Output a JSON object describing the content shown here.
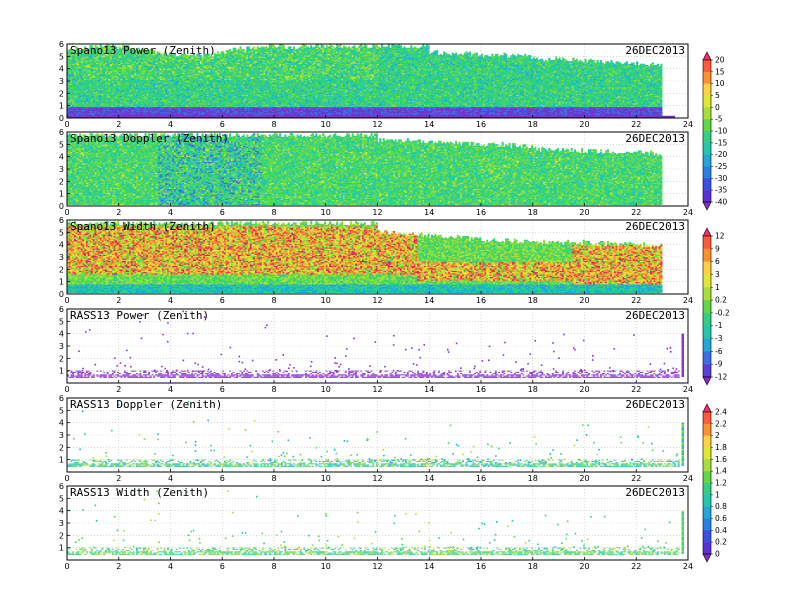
{
  "chart_data": [
    {
      "type": "heatmap",
      "title": "Spano13 Power (Zenith)",
      "date": "26DEC2013",
      "xlim": [
        0,
        24
      ],
      "ylim": [
        0,
        6
      ],
      "x_ticks": [
        0,
        2,
        4,
        6,
        8,
        10,
        12,
        14,
        16,
        18,
        20,
        22,
        24
      ],
      "y_ticks": [
        0,
        1,
        2,
        3,
        4,
        5,
        6
      ],
      "colorbar": "cb1",
      "profile": "power_sp"
    },
    {
      "type": "heatmap",
      "title": "Spano13 Doppler (Zenith)",
      "date": "26DEC2013",
      "xlim": [
        0,
        24
      ],
      "ylim": [
        0,
        6
      ],
      "x_ticks": [
        0,
        2,
        4,
        6,
        8,
        10,
        12,
        14,
        16,
        18,
        20,
        22,
        24
      ],
      "y_ticks": [
        0,
        1,
        2,
        3,
        4,
        5,
        6
      ],
      "colorbar": "cb1",
      "profile": "doppler_sp"
    },
    {
      "type": "heatmap",
      "title": "Spano13 Width (Zenith)",
      "date": "26DEC2013",
      "xlim": [
        0,
        24
      ],
      "ylim": [
        0,
        6
      ],
      "x_ticks": [
        0,
        2,
        4,
        6,
        8,
        10,
        12,
        14,
        16,
        18,
        20,
        22,
        24
      ],
      "y_ticks": [
        0,
        1,
        2,
        3,
        4,
        5,
        6
      ],
      "colorbar": "cb2",
      "profile": "width_sp"
    },
    {
      "type": "heatmap",
      "title": "RASS13 Power (Zenith)",
      "date": "26DEC2013",
      "xlim": [
        0,
        24
      ],
      "ylim": [
        0,
        6
      ],
      "x_ticks": [
        0,
        2,
        4,
        6,
        8,
        10,
        12,
        14,
        16,
        18,
        20,
        22,
        24
      ],
      "y_ticks": [
        1,
        2,
        3,
        4,
        5,
        6
      ],
      "colorbar": "cb2",
      "profile": "power_rass"
    },
    {
      "type": "heatmap",
      "title": "RASS13 Doppler (Zenith)",
      "date": "26DEC2013",
      "xlim": [
        0,
        24
      ],
      "ylim": [
        0,
        6
      ],
      "x_ticks": [
        0,
        2,
        4,
        6,
        8,
        10,
        12,
        14,
        16,
        18,
        20,
        22,
        24
      ],
      "y_ticks": [
        1,
        2,
        3,
        4,
        5,
        6
      ],
      "colorbar": "cb3",
      "profile": "doppler_rass"
    },
    {
      "type": "heatmap",
      "title": "RASS13 Width (Zenith)",
      "date": "26DEC2013",
      "xlim": [
        0,
        24
      ],
      "ylim": [
        0,
        6
      ],
      "x_ticks": [
        0,
        2,
        4,
        6,
        8,
        10,
        12,
        14,
        16,
        18,
        20,
        22,
        24
      ],
      "y_ticks": [
        1,
        2,
        3,
        4,
        5,
        6
      ],
      "colorbar": "cb3",
      "profile": "width_rass"
    }
  ],
  "colorbars": {
    "cb1": {
      "labels": [
        "20",
        "15",
        "10",
        "5",
        "0",
        "-5",
        "-10",
        "-15",
        "-20",
        "-25",
        "-30",
        "-35",
        "-40"
      ],
      "colors": [
        "#ff2a6e",
        "#ff5a3c",
        "#ff9030",
        "#ffd040",
        "#e0e830",
        "#a8e038",
        "#60d848",
        "#30d080",
        "#20c8b0",
        "#20a8d8",
        "#2880e8",
        "#3850e8",
        "#5a30d8",
        "#8a28c8"
      ]
    },
    "cb2": {
      "labels": [
        "12",
        "9",
        "6",
        "3",
        "1",
        "0.2",
        "-0.2",
        "-1",
        "-3",
        "-6",
        "-9",
        "-12"
      ],
      "colors": [
        "#ff2a6e",
        "#ff5a3c",
        "#ff9030",
        "#ffd040",
        "#e0e830",
        "#a8e038",
        "#60d848",
        "#30d080",
        "#20c8b0",
        "#20a8d8",
        "#3870e8",
        "#5a40d8",
        "#8a28c8"
      ]
    },
    "cb3": {
      "labels": [
        "2.4",
        "2.2",
        "2",
        "1.8",
        "1.6",
        "1.4",
        "1.2",
        "1",
        "0.8",
        "0.6",
        "0.4",
        "0.2",
        "0"
      ],
      "colors": [
        "#ff2a6e",
        "#ff5a3c",
        "#ff9030",
        "#ffd040",
        "#e0e830",
        "#a8e038",
        "#60d848",
        "#30d080",
        "#20c8b0",
        "#20a8d8",
        "#2880e8",
        "#3850e8",
        "#5a30d8",
        "#8a28c8"
      ]
    }
  }
}
